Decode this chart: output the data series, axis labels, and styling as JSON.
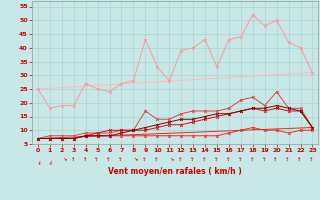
{
  "title": "Vent moyen/en rafales ( km/h )",
  "bg_color": "#c8e8e8",
  "grid_color": "#aacccc",
  "xlim": [
    -0.5,
    23.5
  ],
  "ylim": [
    5,
    57
  ],
  "yticks": [
    5,
    10,
    15,
    20,
    25,
    30,
    35,
    40,
    45,
    50,
    55
  ],
  "xticks": [
    0,
    1,
    2,
    3,
    4,
    5,
    6,
    7,
    8,
    9,
    10,
    11,
    12,
    13,
    14,
    15,
    16,
    17,
    18,
    19,
    20,
    21,
    22,
    23
  ],
  "lines": [
    {
      "color": "#ff9999",
      "lw": 0.7,
      "marker": "x",
      "ms": 2.0,
      "mew": 0.6,
      "data_x": [
        0,
        1,
        2,
        3,
        4,
        5,
        6,
        7,
        8,
        9,
        10,
        11,
        12,
        13,
        14,
        15,
        16,
        17,
        18,
        19,
        20,
        21,
        22,
        23
      ],
      "data_y": [
        25,
        18,
        19,
        19,
        27,
        25,
        24,
        27,
        28,
        43,
        33,
        28,
        39,
        40,
        43,
        33,
        43,
        44,
        52,
        48,
        50,
        42,
        40,
        31
      ]
    },
    {
      "color": "#ffbbbb",
      "lw": 0.7,
      "marker": null,
      "ms": 0,
      "mew": 0,
      "data_x": [
        0,
        23
      ],
      "data_y": [
        25,
        31
      ]
    },
    {
      "color": "#dd4444",
      "lw": 0.7,
      "marker": "x",
      "ms": 2.0,
      "mew": 0.6,
      "data_x": [
        0,
        1,
        2,
        3,
        4,
        5,
        6,
        7,
        8,
        9,
        10,
        11,
        12,
        13,
        14,
        15,
        16,
        17,
        18,
        19,
        20,
        21,
        22,
        23
      ],
      "data_y": [
        7,
        8,
        8,
        8,
        9,
        9,
        9,
        10,
        10,
        17,
        14,
        14,
        16,
        17,
        17,
        17,
        18,
        21,
        22,
        19,
        24,
        18,
        18,
        11
      ]
    },
    {
      "color": "#cc3333",
      "lw": 0.7,
      "marker": null,
      "ms": 0,
      "mew": 0,
      "data_x": [
        0,
        23
      ],
      "data_y": [
        7,
        11
      ]
    },
    {
      "color": "#ff2222",
      "lw": 0.7,
      "marker": "x",
      "ms": 2.0,
      "mew": 0.6,
      "data_x": [
        0,
        1,
        2,
        3,
        4,
        5,
        6,
        7,
        8,
        9,
        10,
        11,
        12,
        13,
        14,
        15,
        16,
        17,
        18,
        19,
        20,
        21,
        22,
        23
      ],
      "data_y": [
        7,
        7,
        7,
        7,
        8,
        8,
        8,
        8,
        8,
        8,
        8,
        8,
        8,
        8,
        8,
        8,
        9,
        10,
        11,
        10,
        10,
        9,
        10,
        10
      ]
    },
    {
      "color": "#cc1111",
      "lw": 0.7,
      "marker": "x",
      "ms": 2.0,
      "mew": 0.6,
      "data_x": [
        0,
        1,
        2,
        3,
        4,
        5,
        6,
        7,
        8,
        9,
        10,
        11,
        12,
        13,
        14,
        15,
        16,
        17,
        18,
        19,
        20,
        21,
        22,
        23
      ],
      "data_y": [
        7,
        7,
        7,
        7,
        8,
        9,
        10,
        10,
        10,
        10,
        11,
        12,
        12,
        13,
        14,
        15,
        16,
        17,
        18,
        17,
        18,
        17,
        17,
        11
      ]
    },
    {
      "color": "#880000",
      "lw": 0.7,
      "marker": "x",
      "ms": 2.0,
      "mew": 0.6,
      "data_x": [
        0,
        1,
        2,
        3,
        4,
        5,
        6,
        7,
        8,
        9,
        10,
        11,
        12,
        13,
        14,
        15,
        16,
        17,
        18,
        19,
        20,
        21,
        22,
        23
      ],
      "data_y": [
        7,
        7,
        7,
        7,
        8,
        8,
        8,
        9,
        10,
        11,
        12,
        13,
        14,
        14,
        15,
        16,
        16,
        17,
        18,
        18,
        19,
        18,
        17,
        11
      ]
    }
  ],
  "label_color": "#cc0000",
  "tick_fontsize": 4.5,
  "xlabel_fontsize": 5.5,
  "arrow_angles": [
    210,
    200,
    270,
    45,
    45,
    45,
    45,
    45,
    270,
    45,
    45,
    270,
    45,
    45,
    45,
    45,
    45,
    45,
    45,
    45,
    45,
    45,
    45,
    45
  ]
}
